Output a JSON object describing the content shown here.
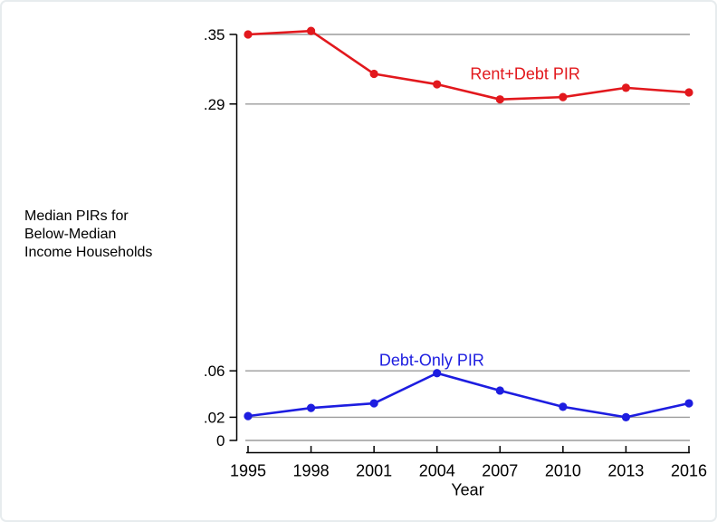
{
  "figure": {
    "side_label_lines": [
      "Median PIRs for",
      "Below-Median",
      "Income Households"
    ]
  },
  "chart_data": {
    "type": "line",
    "x": [
      1995,
      1998,
      2001,
      2004,
      2007,
      2010,
      2013,
      2016
    ],
    "x_tick_labels": [
      "1995",
      "1998",
      "2001",
      "2004",
      "2007",
      "2010",
      "2013",
      "2016"
    ],
    "series": [
      {
        "name": "Rent+Debt PIR",
        "color": "#e2181d",
        "values": [
          0.35,
          0.353,
          0.316,
          0.307,
          0.294,
          0.296,
          0.304,
          0.3
        ]
      },
      {
        "name": "Debt-Only PIR",
        "color": "#1d1de0",
        "values": [
          0.021,
          0.028,
          0.032,
          0.058,
          0.043,
          0.029,
          0.02,
          0.032
        ]
      }
    ],
    "y_ticks": [
      {
        "value": 0.0,
        "label": "0"
      },
      {
        "value": 0.02,
        "label": ".02"
      },
      {
        "value": 0.06,
        "label": ".06"
      },
      {
        "value": 0.29,
        "label": ".29"
      },
      {
        "value": 0.35,
        "label": ".35"
      }
    ],
    "ylim": [
      0,
      0.35
    ],
    "xlim": [
      1995,
      2016
    ],
    "grid": true,
    "legend_position": "inline-annotations",
    "title": "",
    "xlabel": "Year",
    "ylabel": "Median PIRs for Below-Median Income Households",
    "annotations": [
      {
        "text": "Rent+Debt PIR",
        "color": "#e2181d",
        "x": 2008.2,
        "y": 0.3155
      },
      {
        "text": "Debt-Only PIR",
        "color": "#1d1de0",
        "x": 2003.75,
        "y": 0.069
      }
    ],
    "colors": {
      "gridline": "#9c9c9c",
      "axis": "#000000",
      "tick_label": "#000000"
    }
  }
}
